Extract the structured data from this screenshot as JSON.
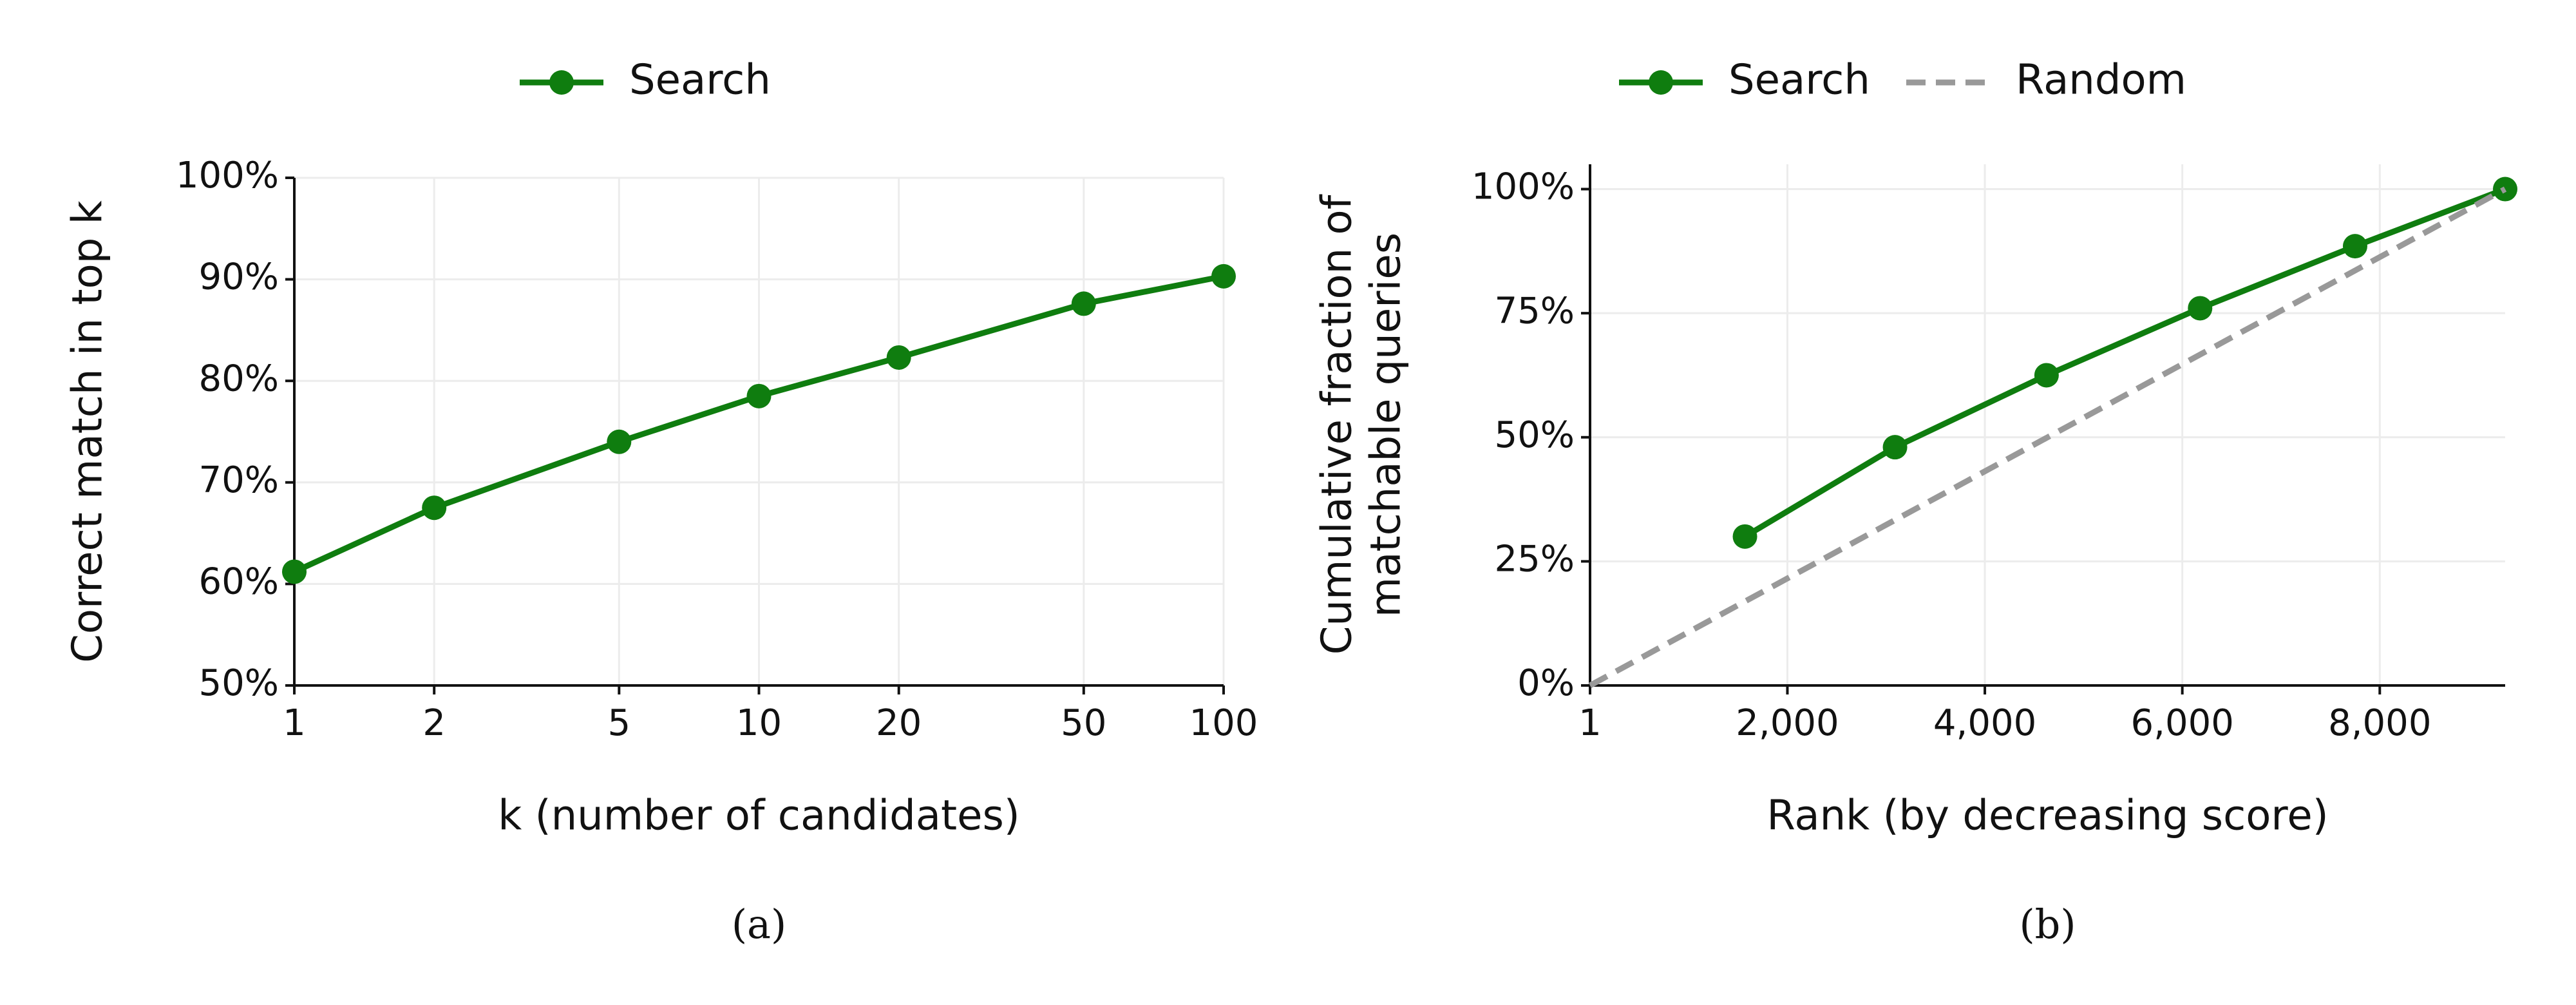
{
  "chart_data": [
    {
      "type": "line",
      "label": "(a)",
      "xlabel": "k (number of candidates)",
      "ylabel": [
        "Correct match in top k"
      ],
      "xscale": "log",
      "xlim": [
        1,
        100
      ],
      "xticks": [
        1,
        2,
        5,
        10,
        20,
        50,
        100
      ],
      "ylim": [
        50,
        100
      ],
      "yticks": [
        {
          "value": 50,
          "label": "50%"
        },
        {
          "value": 60,
          "label": "60%"
        },
        {
          "value": 70,
          "label": "70%"
        },
        {
          "value": 80,
          "label": "80%"
        },
        {
          "value": 90,
          "label": "90%"
        },
        {
          "value": 100,
          "label": "100%"
        }
      ],
      "grid": true,
      "series": [
        {
          "name": "Search",
          "color": "#0f7d0f",
          "linestyle": "-",
          "marker": "o",
          "x": [
            1,
            2,
            5,
            10,
            20,
            50,
            100
          ],
          "values": [
            61.2,
            67.5,
            74,
            78.5,
            82.3,
            87.6,
            90.3
          ]
        }
      ]
    },
    {
      "type": "line",
      "label": "(b)",
      "xlabel": "Rank (by decreasing score)",
      "ylabel": [
        "Cumulative fraction of",
        "matchable queries"
      ],
      "xscale": "linear",
      "xlim": [
        1,
        9270
      ],
      "xticks": [
        1,
        {
          "value": 2000,
          "label": "2,000"
        },
        {
          "value": 4000,
          "label": "4,000"
        },
        {
          "value": 6000,
          "label": "6,000"
        },
        {
          "value": 8000,
          "label": "8,000"
        }
      ],
      "ylim": [
        0,
        105
      ],
      "yticks": [
        {
          "value": 0,
          "label": "0%"
        },
        {
          "value": 25,
          "label": "25%"
        },
        {
          "value": 50,
          "label": "50%"
        },
        {
          "value": 75,
          "label": "75%"
        },
        {
          "value": 100,
          "label": "100%"
        }
      ],
      "grid": true,
      "series": [
        {
          "name": "Search",
          "color": "#0f7d0f",
          "linestyle": "-",
          "marker": "o",
          "x": [
            1570,
            3090,
            4625,
            6180,
            7750,
            9270
          ],
          "values": [
            30,
            48,
            62.5,
            76,
            88.5,
            100
          ]
        },
        {
          "name": "Random",
          "color": "#999999",
          "linestyle": "--",
          "marker": "none",
          "x": [
            1,
            9270
          ],
          "values": [
            0,
            100
          ]
        }
      ]
    }
  ]
}
